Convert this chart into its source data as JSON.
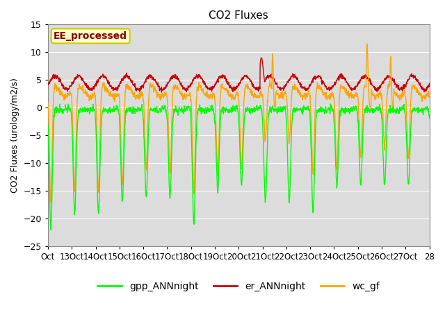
{
  "title": "CO2 Fluxes",
  "ylabel": "CO2 Fluxes (urology/m2/s)",
  "ylim": [
    -25,
    15
  ],
  "yticks": [
    -25,
    -20,
    -15,
    -10,
    -5,
    0,
    5,
    10,
    15
  ],
  "x_labels": [
    "Oct",
    "13Oct",
    "14Oct",
    "15Oct",
    "16Oct",
    "17Oct",
    "18Oct",
    "19Oct",
    "20Oct",
    "21Oct",
    "22Oct",
    "23Oct",
    "24Oct",
    "25Oct",
    "26Oct",
    "27Oct",
    "28"
  ],
  "annotation_text": "EE_processed",
  "annotation_color": "#8B0000",
  "annotation_bg": "#FFFFCC",
  "annotation_border": "#CCCC00",
  "line_gpp_color": "#00FF00",
  "line_er_color": "#CC0000",
  "line_wc_color": "#FFA500",
  "background_color": "#DCDCDC",
  "legend_labels": [
    "gpp_ANNnight",
    "er_ANNnight",
    "wc_gf"
  ],
  "n_days": 16,
  "points_per_day": 96,
  "figwidth": 6.4,
  "figheight": 4.8,
  "dpi": 100
}
